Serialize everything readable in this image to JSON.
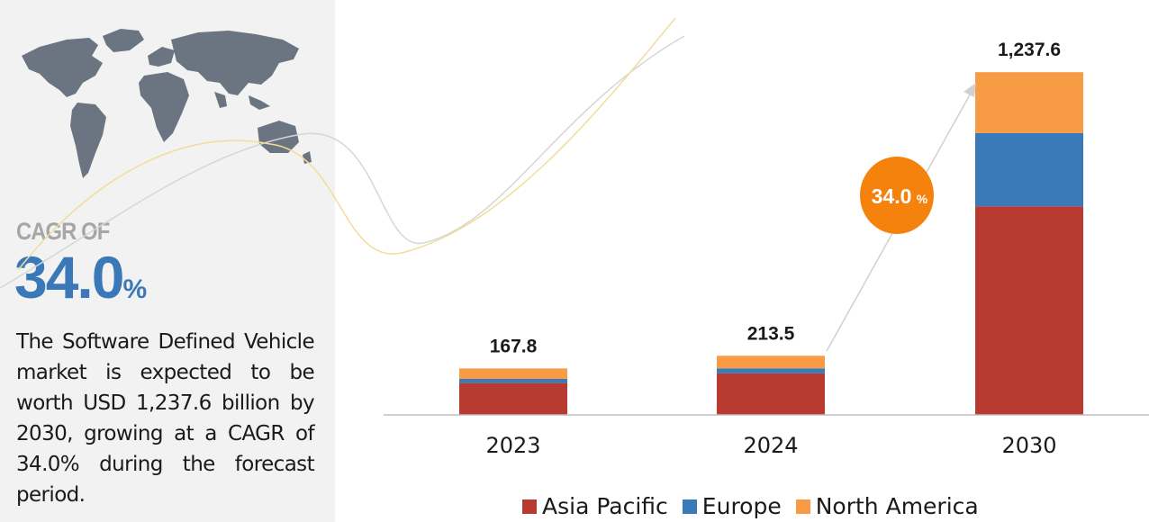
{
  "sidebar": {
    "cagr_label": "CAGR OF",
    "cagr_number": "34.0",
    "cagr_unit": "%",
    "description": "The Software Defined Vehicle market is expected to be worth USD 1,237.6 billion by 2030, growing at a CAGR of 34.0% during the forecast period."
  },
  "colors": {
    "asia_pacific": "#b83a30",
    "europe": "#3a7ab8",
    "north_america": "#f79b45",
    "badge": "#f5820d",
    "cagr_text": "#3b78b8"
  },
  "chart_data": {
    "type": "bar",
    "stacked": true,
    "categories": [
      "2023",
      "2024",
      "2030"
    ],
    "series": [
      {
        "name": "Asia Pacific",
        "values": [
          115,
          150,
          753
        ]
      },
      {
        "name": "Europe",
        "values": [
          15,
          18,
          265
        ]
      },
      {
        "name": "North America",
        "values": [
          37.8,
          45.5,
          219.6
        ]
      }
    ],
    "totals": [
      "167.8",
      "213.5",
      "1,237.6"
    ],
    "ylim": [
      0,
      1300
    ],
    "legend_position": "bottom",
    "grid": false,
    "annotation": {
      "label": "34.0",
      "unit": "%"
    }
  }
}
